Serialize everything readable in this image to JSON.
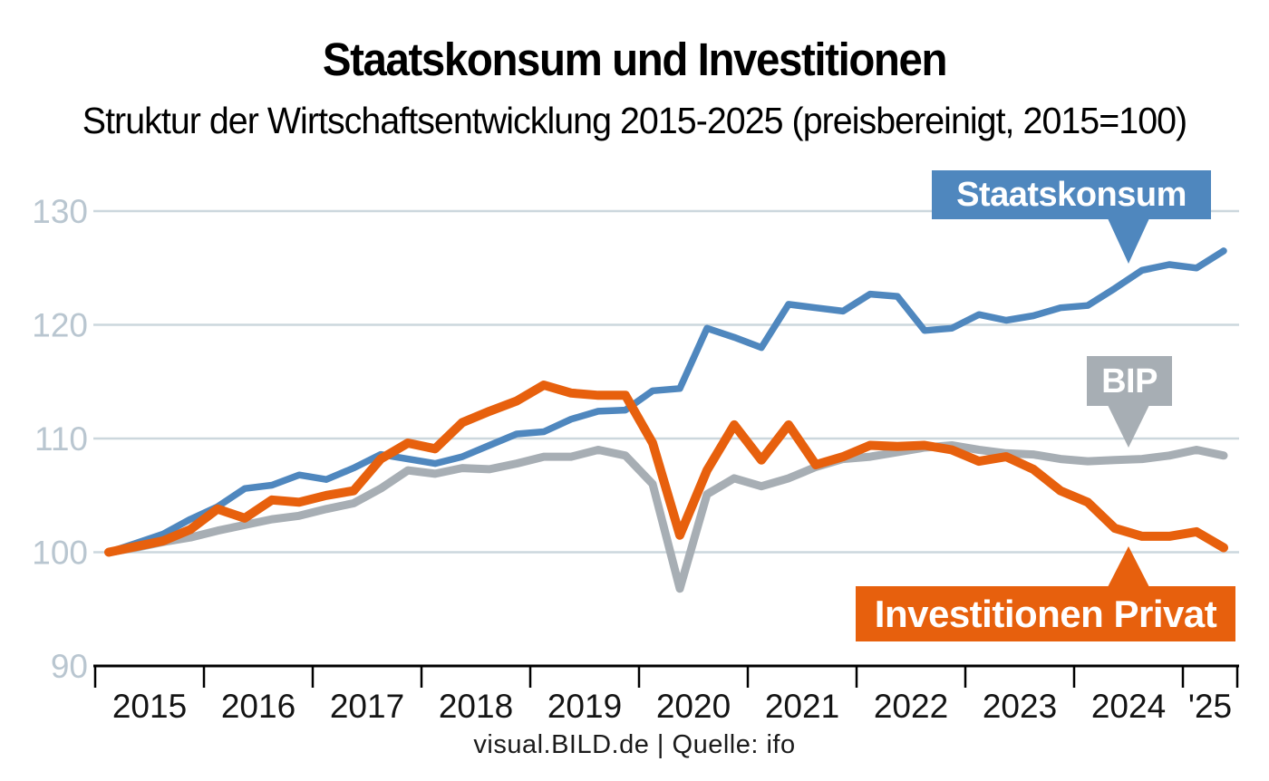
{
  "header": {
    "title": "Staatskonsum und Investitionen",
    "subtitle": "Struktur der Wirtschaftsentwicklung 2015-2025 (preisbereinigt, 2015=100)"
  },
  "footer": {
    "text": "visual.BILD.de | Quelle: ifo"
  },
  "colors": {
    "staatskonsum": "#4f87be",
    "bip": "#a7aeb4",
    "investitionen": "#e7600d",
    "grid": "#ccd7dd",
    "axis": "#000000",
    "y_label": "#b9c6d0",
    "x_label": "#141414",
    "background": "#ffffff"
  },
  "chart_data": {
    "type": "line",
    "title": "Staatskonsum und Investitionen",
    "subtitle": "Struktur der Wirtschaftsentwicklung 2015-2025 (preisbereinigt, 2015=100)",
    "grid": "horizontal gridlines at 100/110/120/130, black baseline at 90",
    "legend_position": "callout boxes with pointers on chart",
    "y_axis": {
      "ticks": [
        90,
        100,
        110,
        120,
        130
      ],
      "ylim": [
        90,
        133
      ],
      "index_base": "2015=100"
    },
    "x_axis": {
      "tick_labels": [
        "2015",
        "2016",
        "2017",
        "2018",
        "2019",
        "2020",
        "2021",
        "2022",
        "2023",
        "2024",
        "'25"
      ],
      "note": "quarterly data 2015Q1 to 2025Q2, year ticks between labels"
    },
    "quarters": [
      "2015Q1",
      "2015Q2",
      "2015Q3",
      "2015Q4",
      "2016Q1",
      "2016Q2",
      "2016Q3",
      "2016Q4",
      "2017Q1",
      "2017Q2",
      "2017Q3",
      "2017Q4",
      "2018Q1",
      "2018Q2",
      "2018Q3",
      "2018Q4",
      "2019Q1",
      "2019Q2",
      "2019Q3",
      "2019Q4",
      "2020Q1",
      "2020Q2",
      "2020Q3",
      "2020Q4",
      "2021Q1",
      "2021Q2",
      "2021Q3",
      "2021Q4",
      "2022Q1",
      "2022Q2",
      "2022Q3",
      "2022Q4",
      "2023Q1",
      "2023Q2",
      "2023Q3",
      "2023Q4",
      "2024Q1",
      "2024Q2",
      "2024Q3",
      "2024Q4",
      "2025Q1",
      "2025Q2"
    ],
    "series": [
      {
        "name": "Staatskonsum",
        "color": "#4f87be",
        "values": [
          100,
          100.8,
          101.6,
          102.9,
          104,
          105.6,
          105.9,
          106.8,
          106.4,
          107.4,
          108.6,
          108.2,
          107.8,
          108.4,
          109.4,
          110.4,
          110.6,
          111.7,
          112.4,
          112.5,
          114.2,
          114.4,
          119.7,
          118.9,
          118,
          121.8,
          121.5,
          121.2,
          122.7,
          122.5,
          119.5,
          119.7,
          120.9,
          120.4,
          120.8,
          121.5,
          121.7,
          123.2,
          124.8,
          125.3,
          125,
          126.5
        ]
      },
      {
        "name": "BIP",
        "color": "#a7aeb4",
        "values": [
          100,
          100.4,
          100.9,
          101.3,
          101.9,
          102.4,
          102.9,
          103.2,
          103.8,
          104.3,
          105.6,
          107.2,
          106.9,
          107.4,
          107.3,
          107.8,
          108.4,
          108.4,
          109,
          108.5,
          106,
          96.8,
          105.1,
          106.5,
          105.8,
          106.5,
          107.5,
          108.2,
          108.4,
          108.8,
          109.2,
          109.4,
          109,
          108.7,
          108.6,
          108.2,
          108,
          108.1,
          108.2,
          108.5,
          109,
          108.5
        ]
      },
      {
        "name": "Investitionen Privat",
        "color": "#e7600d",
        "values": [
          100,
          100.5,
          101,
          102,
          103.8,
          103,
          104.6,
          104.4,
          105,
          105.4,
          108.2,
          109.6,
          109.1,
          111.4,
          112.4,
          113.3,
          114.7,
          114,
          113.8,
          113.8,
          109.6,
          101.5,
          107.2,
          111.2,
          108.1,
          111.2,
          107.7,
          108.4,
          109.4,
          109.3,
          109.4,
          109,
          108,
          108.4,
          107.3,
          105.4,
          104.4,
          102.1,
          101.4,
          101.4,
          101.8,
          100.4
        ]
      }
    ]
  },
  "callouts": [
    {
      "label": "Staatskonsum",
      "pointer": "down"
    },
    {
      "label": "BIP",
      "pointer": "down"
    },
    {
      "label": "Investitionen Privat",
      "pointer": "up"
    }
  ]
}
